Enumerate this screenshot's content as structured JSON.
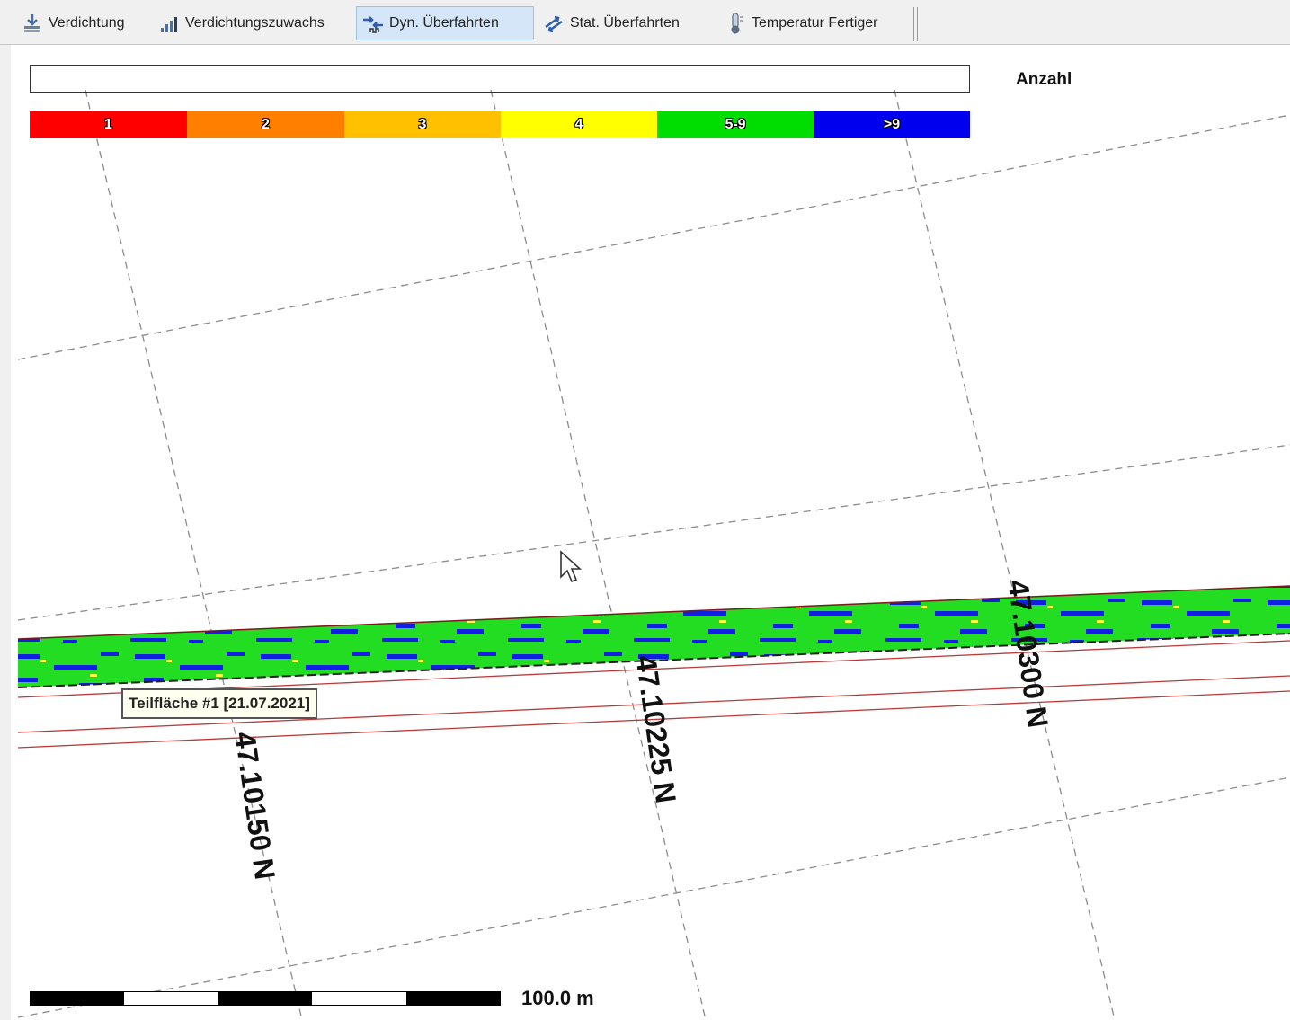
{
  "toolbar": {
    "buttons": [
      {
        "label": "Verdichtung",
        "icon": "compaction-icon"
      },
      {
        "label": "Verdichtungszuwachs",
        "icon": "bar-chart-icon"
      },
      {
        "label": "Dyn. Überfahrten",
        "icon": "dynamic-passes-icon",
        "active": true
      },
      {
        "label": "Stat. Überfahrten",
        "icon": "static-passes-icon"
      },
      {
        "label": "Temperatur Fertiger",
        "icon": "thermometer-icon"
      }
    ]
  },
  "legend": {
    "title": "Anzahl",
    "classes": [
      {
        "label": "1",
        "color": "#ff0000"
      },
      {
        "label": "2",
        "color": "#ff8000"
      },
      {
        "label": "3",
        "color": "#ffc000"
      },
      {
        "label": "4",
        "color": "#ffff00"
      },
      {
        "label": "5-9",
        "color": "#00dd00"
      },
      {
        "label": ">9",
        "color": "#0000ee"
      }
    ]
  },
  "map": {
    "latitude_labels": [
      "47.10150 N",
      "47.10225 N",
      "47.10300 N"
    ],
    "tooltip": "Teilfläche #1 [21.07.2021]",
    "scale": "100.0 m"
  }
}
